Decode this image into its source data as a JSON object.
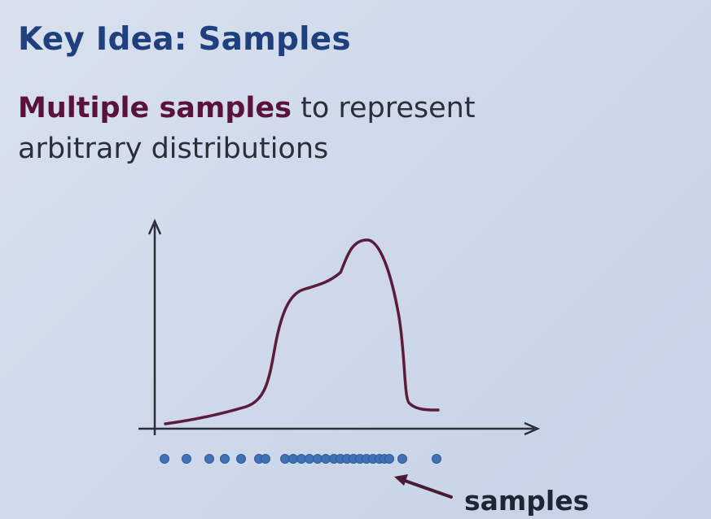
{
  "slide": {
    "title": "Key Idea: Samples",
    "body_emphasis": "Multiple samples",
    "body_rest_line1": " to represent",
    "body_line2": "arbitrary distributions"
  },
  "diagram": {
    "annotation_label": "samples",
    "sample_count": 26,
    "colors": {
      "curve": "#5a1c3a",
      "axis": "#2b2f3a",
      "sample_dot": "#3e72b5",
      "arrow": "#4a1a34"
    }
  }
}
